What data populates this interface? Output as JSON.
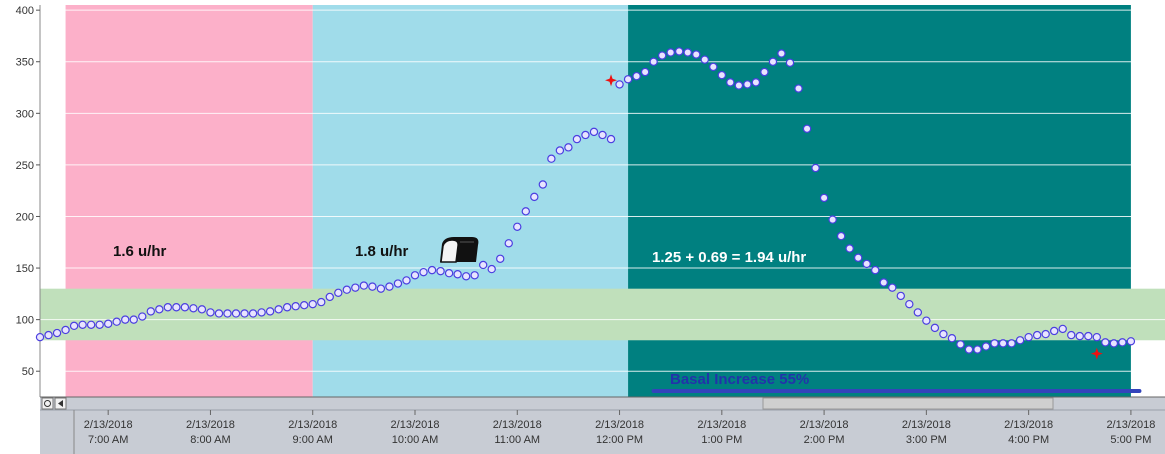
{
  "colors": {
    "band_1": "#fcb0c9",
    "band_2": "#a0dcea",
    "band_3": "#008080",
    "target_range": "#c0e0bb",
    "point_fill": "#e8e4ff",
    "point_stroke": "#4a3ee0",
    "marker": "#ee1111",
    "basal_line": "#3344bb",
    "axis_bar": "#c8ccd4"
  },
  "annotations": {
    "band_1_rate": "1.6 u/hr",
    "band_2_rate": "1.8 u/hr",
    "band_3_rate": "1.25 +  0.69 = 1.94 u/hr",
    "basal_increase": "Basal Increase 55%",
    "meal_icon": "bread-icon"
  },
  "chart_data": {
    "type": "scatter",
    "ylim": [
      25,
      405
    ],
    "yticks": [
      50,
      100,
      150,
      200,
      250,
      300,
      350,
      400
    ],
    "xlim": [
      "2/13/2018 6:20 AM",
      "2/13/2018 5:20 PM"
    ],
    "xtick_labels": [
      [
        "2/13/2018",
        "7:00 AM"
      ],
      [
        "2/13/2018",
        "8:00 AM"
      ],
      [
        "2/13/2018",
        "9:00 AM"
      ],
      [
        "2/13/2018",
        "10:00 AM"
      ],
      [
        "2/13/2018",
        "11:00 AM"
      ],
      [
        "2/13/2018",
        "12:00 PM"
      ],
      [
        "2/13/2018",
        "1:00 PM"
      ],
      [
        "2/13/2018",
        "2:00 PM"
      ],
      [
        "2/13/2018",
        "3:00 PM"
      ],
      [
        "2/13/2018",
        "4:00 PM"
      ],
      [
        "2/13/2018",
        "5:00 PM"
      ]
    ],
    "target_range": [
      80,
      130
    ],
    "bands": [
      {
        "start": "6:35 AM",
        "end": "9:00 AM",
        "label": "1.6 u/hr"
      },
      {
        "start": "9:00 AM",
        "end": "12:05 PM",
        "label": "1.8 u/hr"
      },
      {
        "start": "12:05 PM",
        "end": "5:00 PM",
        "label": "1.25 +  0.69 = 1.94 u/hr"
      }
    ],
    "basal_increase": {
      "start": "12:20 PM",
      "end": "5:05 PM",
      "label": "Basal Increase 55%"
    },
    "glucose": [
      [
        "6:20",
        83
      ],
      [
        "6:25",
        85
      ],
      [
        "6:30",
        87
      ],
      [
        "6:35",
        90
      ],
      [
        "6:40",
        94
      ],
      [
        "6:45",
        95
      ],
      [
        "6:50",
        95
      ],
      [
        "6:55",
        95
      ],
      [
        "7:00",
        96
      ],
      [
        "7:05",
        98
      ],
      [
        "7:10",
        100
      ],
      [
        "7:15",
        100
      ],
      [
        "7:20",
        103
      ],
      [
        "7:25",
        108
      ],
      [
        "7:30",
        110
      ],
      [
        "7:35",
        112
      ],
      [
        "7:40",
        112
      ],
      [
        "7:45",
        112
      ],
      [
        "7:50",
        111
      ],
      [
        "7:55",
        110
      ],
      [
        "8:00",
        107
      ],
      [
        "8:05",
        106
      ],
      [
        "8:10",
        106
      ],
      [
        "8:15",
        106
      ],
      [
        "8:20",
        106
      ],
      [
        "8:25",
        106
      ],
      [
        "8:30",
        107
      ],
      [
        "8:35",
        108
      ],
      [
        "8:40",
        110
      ],
      [
        "8:45",
        112
      ],
      [
        "8:50",
        113
      ],
      [
        "8:55",
        114
      ],
      [
        "9:00",
        115
      ],
      [
        "9:05",
        117
      ],
      [
        "9:10",
        122
      ],
      [
        "9:15",
        126
      ],
      [
        "9:20",
        129
      ],
      [
        "9:25",
        131
      ],
      [
        "9:30",
        133
      ],
      [
        "9:35",
        132
      ],
      [
        "9:40",
        130
      ],
      [
        "9:45",
        132
      ],
      [
        "9:50",
        135
      ],
      [
        "9:55",
        138
      ],
      [
        "10:00",
        143
      ],
      [
        "10:05",
        146
      ],
      [
        "10:10",
        148
      ],
      [
        "10:15",
        147
      ],
      [
        "10:20",
        145
      ],
      [
        "10:25",
        144
      ],
      [
        "10:30",
        142
      ],
      [
        "10:35",
        143
      ],
      [
        "10:40",
        153
      ],
      [
        "10:45",
        149
      ],
      [
        "10:50",
        159
      ],
      [
        "10:55",
        174
      ],
      [
        "11:00",
        190
      ],
      [
        "11:05",
        205
      ],
      [
        "11:10",
        219
      ],
      [
        "11:15",
        231
      ],
      [
        "11:20",
        256
      ],
      [
        "11:25",
        264
      ],
      [
        "11:30",
        267
      ],
      [
        "11:35",
        275
      ],
      [
        "11:40",
        279
      ],
      [
        "11:45",
        282
      ],
      [
        "11:50",
        279
      ],
      [
        "11:55",
        275
      ],
      [
        "12:00",
        328
      ],
      [
        "12:05",
        333
      ],
      [
        "12:10",
        336
      ],
      [
        "12:15",
        340
      ],
      [
        "12:20",
        350
      ],
      [
        "12:25",
        356
      ],
      [
        "12:30",
        359
      ],
      [
        "12:35",
        360
      ],
      [
        "12:40",
        359
      ],
      [
        "12:45",
        357
      ],
      [
        "12:50",
        352
      ],
      [
        "12:55",
        345
      ],
      [
        "13:00",
        337
      ],
      [
        "13:05",
        330
      ],
      [
        "13:10",
        327
      ],
      [
        "13:15",
        328
      ],
      [
        "13:20",
        330
      ],
      [
        "13:25",
        340
      ],
      [
        "13:30",
        350
      ],
      [
        "13:35",
        358
      ],
      [
        "13:40",
        349
      ],
      [
        "13:45",
        324
      ],
      [
        "13:50",
        285
      ],
      [
        "13:55",
        247
      ],
      [
        "14:00",
        218
      ],
      [
        "14:05",
        197
      ],
      [
        "14:10",
        181
      ],
      [
        "14:15",
        169
      ],
      [
        "14:20",
        160
      ],
      [
        "14:25",
        154
      ],
      [
        "14:30",
        148
      ],
      [
        "14:35",
        136
      ],
      [
        "14:40",
        131
      ],
      [
        "14:45",
        123
      ],
      [
        "14:50",
        115
      ],
      [
        "14:55",
        107
      ],
      [
        "15:00",
        99
      ],
      [
        "15:05",
        92
      ],
      [
        "15:10",
        86
      ],
      [
        "15:15",
        82
      ],
      [
        "15:20",
        76
      ],
      [
        "15:25",
        71
      ],
      [
        "15:30",
        71
      ],
      [
        "15:35",
        74
      ],
      [
        "15:40",
        77
      ],
      [
        "15:45",
        77
      ],
      [
        "15:50",
        77
      ],
      [
        "15:55",
        80
      ],
      [
        "16:00",
        83
      ],
      [
        "16:05",
        85
      ],
      [
        "16:10",
        86
      ],
      [
        "16:15",
        89
      ],
      [
        "16:20",
        91
      ],
      [
        "16:25",
        85
      ],
      [
        "16:30",
        84
      ],
      [
        "16:35",
        84
      ],
      [
        "16:40",
        83
      ],
      [
        "16:45",
        78
      ],
      [
        "16:50",
        77
      ],
      [
        "16:55",
        78
      ],
      [
        "17:00",
        79
      ]
    ],
    "markers": [
      [
        "11:55",
        332
      ],
      [
        "16:40",
        67
      ]
    ],
    "grid": true,
    "legend": "none"
  }
}
